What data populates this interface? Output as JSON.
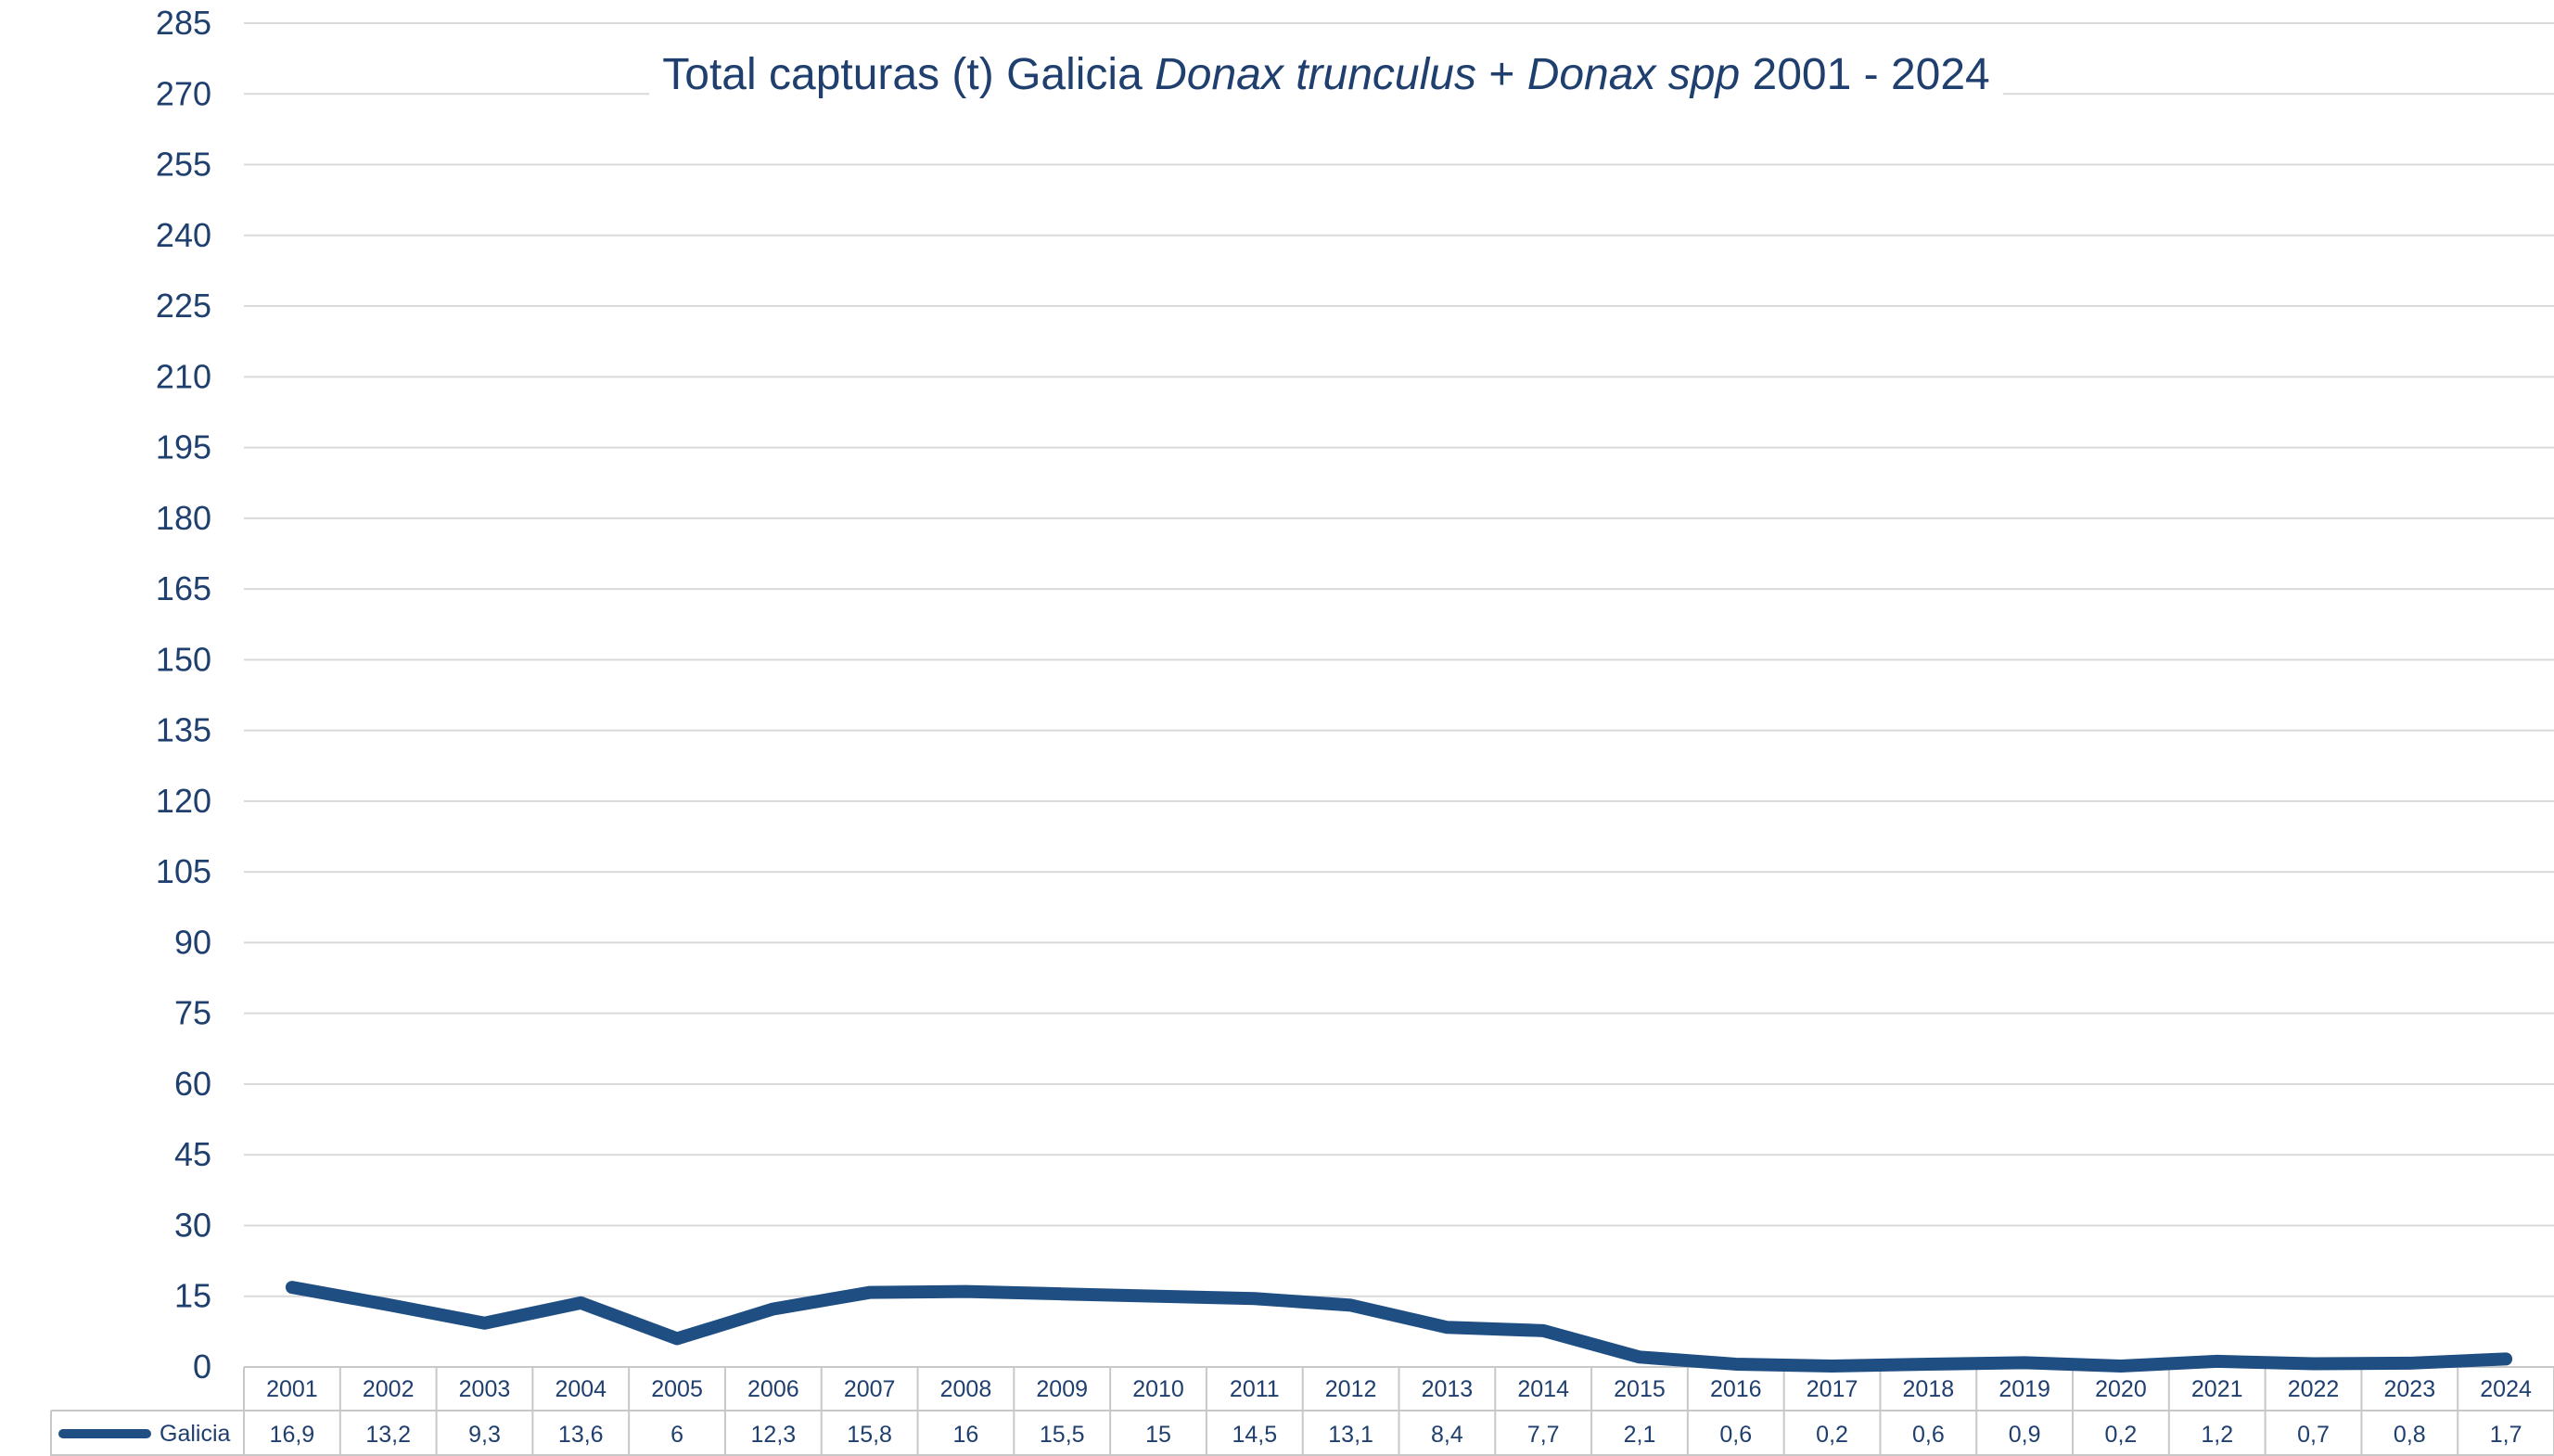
{
  "chart_data": {
    "type": "line",
    "title_parts": [
      {
        "text": "Total capturas (t) Galicia ",
        "italic": false
      },
      {
        "text": "Donax trunculus",
        "italic": true
      },
      {
        "text": " + ",
        "italic": false
      },
      {
        "text": "Donax spp",
        "italic": true
      },
      {
        "text": " 2001 - 2024",
        "italic": false
      }
    ],
    "categories": [
      "2001",
      "2002",
      "2003",
      "2004",
      "2005",
      "2006",
      "2007",
      "2008",
      "2009",
      "2010",
      "2011",
      "2012",
      "2013",
      "2014",
      "2015",
      "2016",
      "2017",
      "2018",
      "2019",
      "2020",
      "2021",
      "2022",
      "2023",
      "2024"
    ],
    "series": [
      {
        "name": "Galicia",
        "color": "#1f4e82",
        "values": [
          16.9,
          13.2,
          9.3,
          13.6,
          6,
          12.3,
          15.8,
          16,
          15.5,
          15,
          14.5,
          13.1,
          8.4,
          7.7,
          2.1,
          0.6,
          0.2,
          0.6,
          0.9,
          0.2,
          1.2,
          0.7,
          0.8,
          1.7
        ],
        "value_labels": [
          "16,9",
          "13,2",
          "9,3",
          "13,6",
          "6",
          "12,3",
          "15,8",
          "16",
          "15,5",
          "15",
          "14,5",
          "13,1",
          "8,4",
          "7,7",
          "2,1",
          "0,6",
          "0,2",
          "0,6",
          "0,9",
          "0,2",
          "1,2",
          "0,7",
          "0,8",
          "1,7"
        ]
      }
    ],
    "ylim": [
      0,
      285
    ],
    "yticks": [
      0,
      15,
      30,
      45,
      60,
      75,
      90,
      105,
      120,
      135,
      150,
      165,
      180,
      195,
      210,
      225,
      240,
      255,
      270,
      285
    ],
    "grid": true,
    "legend": "data-table-bottom",
    "data_table": true
  }
}
